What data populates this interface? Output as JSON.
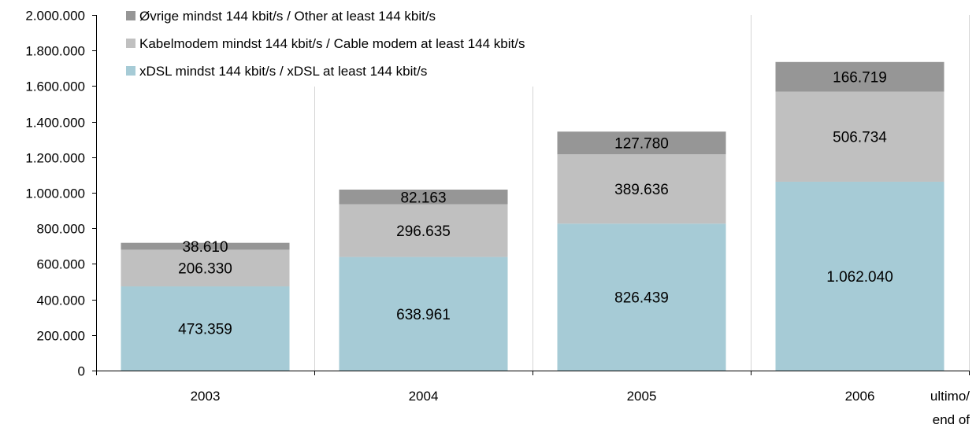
{
  "chart_data": {
    "type": "bar",
    "stacked": true,
    "categories": [
      "2003",
      "2004",
      "2005",
      "2006"
    ],
    "x_axis_note": [
      "ultimo/",
      "end of"
    ],
    "ylim": [
      0,
      2000000
    ],
    "yticks": [
      0,
      200000,
      400000,
      600000,
      800000,
      1000000,
      1200000,
      1400000,
      1600000,
      1800000,
      2000000
    ],
    "ytick_labels": [
      "0",
      "200.000",
      "400.000",
      "600.000",
      "800.000",
      "1.000.000",
      "1.200.000",
      "1.400.000",
      "1.600.000",
      "1.800.000",
      "2.000.000"
    ],
    "grid": "vertical",
    "legend_position": "top-left",
    "series": [
      {
        "name": "xDSL mindst 144 kbit/s / xDSL at least 144 kbit/s",
        "color": "#a6cbd6",
        "values": [
          473359,
          638961,
          826439,
          1062040
        ],
        "labels": [
          "473.359",
          "638.961",
          "826.439",
          "1.062.040"
        ]
      },
      {
        "name": "Kabelmodem mindst 144 kbit/s / Cable modem at least 144 kbit/s",
        "color": "#c0c0c0",
        "values": [
          206330,
          296635,
          389636,
          506734
        ],
        "labels": [
          "206.330",
          "296.635",
          "389.636",
          "506.734"
        ]
      },
      {
        "name": "Øvrige mindst 144 kbit/s / Other at least 144 kbit/s",
        "color": "#969696",
        "values": [
          38610,
          82163,
          127780,
          166719
        ],
        "labels": [
          "38.610",
          "82.163",
          "127.780",
          "166.719"
        ]
      }
    ]
  }
}
